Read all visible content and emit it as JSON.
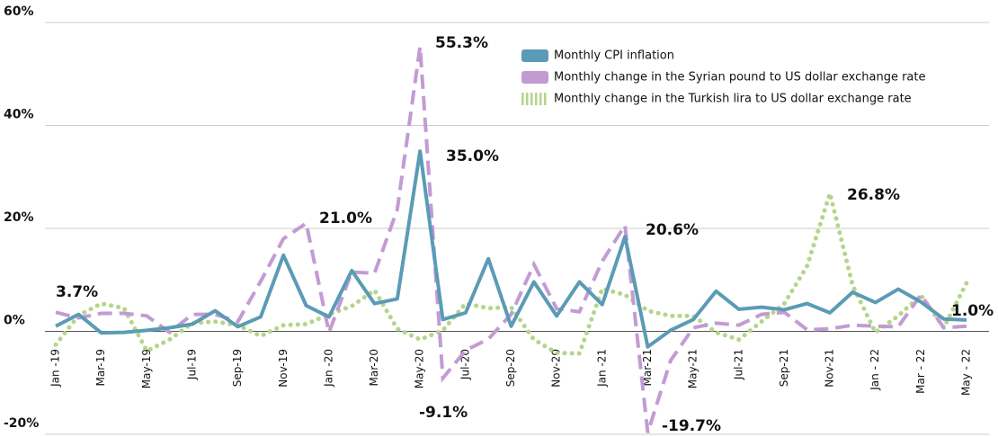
{
  "chart_data": {
    "type": "line",
    "categories": [
      "Jan -19",
      null,
      "Mar-19",
      null,
      "May-19",
      null,
      "Jul-19",
      null,
      "Sep-19",
      null,
      "Nov-19",
      null,
      "Jan -20",
      null,
      "Mar-20",
      null,
      "May-20",
      null,
      "Jul-20",
      null,
      "Sep-20",
      null,
      "Nov-20",
      null,
      "Jan -21",
      null,
      "Mar-21",
      null,
      "May-21",
      null,
      "Jul-21",
      null,
      "Sep-21",
      null,
      "Nov-21",
      null,
      "Jan - 22",
      null,
      "Mar - 22",
      null,
      "May - 22"
    ],
    "series": [
      {
        "name": "Monthly CPI inflation",
        "color": "#5b9bb5",
        "values": [
          1,
          3.3,
          -0.3,
          -0.2,
          0.2,
          0.7,
          1.4,
          4,
          0.9,
          2.8,
          14.8,
          5,
          2.8,
          11.8,
          5.4,
          6.3,
          35.0,
          2.3,
          3.6,
          14.1,
          1,
          9.6,
          3,
          9.6,
          5.2,
          18.4,
          -3,
          0.2,
          2.3,
          7.8,
          4.3,
          4.7,
          4.2,
          5.4,
          3.6,
          7.6,
          5.6,
          8.2,
          5.7,
          2.4,
          2.2
        ]
      },
      {
        "name": "Monthly change in the Syrian pound to US dollar exchange rate",
        "color": "#c39bd3",
        "values": [
          3.7,
          2.6,
          3.5,
          3.5,
          3,
          -0.2,
          3.3,
          3.3,
          1.9,
          9.7,
          18,
          21.0,
          -0.2,
          11.5,
          11.3,
          23.7,
          55.3,
          -9.1,
          -3.7,
          -1.5,
          3.3,
          13,
          4.4,
          3.8,
          13.6,
          20.6,
          -19.7,
          -5.7,
          0.7,
          1.6,
          1.2,
          3.3,
          3.7,
          0.3,
          0.5,
          1.2,
          1,
          0.9,
          7.1,
          0.7,
          1.0
        ]
      },
      {
        "name": "Monthly change in the Turkish lira to US dollar exchange rate",
        "color": "#b5d58a",
        "values": [
          -2.6,
          3.1,
          5.4,
          4.5,
          -3.8,
          -1.6,
          1.6,
          1.9,
          1.2,
          -0.9,
          1.2,
          1.4,
          3.3,
          4.9,
          8,
          0.5,
          -1.6,
          0.2,
          5.4,
          4.5,
          4.7,
          -1.6,
          -4.2,
          -4.3,
          8.3,
          7.1,
          4,
          3,
          3,
          -0.2,
          -1.6,
          1.9,
          5.4,
          12.7,
          26.8,
          8.9,
          -0.2,
          3,
          7,
          0.7,
          9.4
        ]
      }
    ],
    "annotations": [
      "3.7%",
      "21.0%",
      "55.3%",
      "35.0%",
      "-9.1%",
      "20.6%",
      "-19.7%",
      "26.8%",
      "1.0%"
    ],
    "ylim": [
      -20,
      60
    ],
    "yticks": [
      {
        "value": -20,
        "label": "-20%"
      },
      {
        "value": 0,
        "label": "0%"
      },
      {
        "value": 20,
        "label": "20%"
      },
      {
        "value": 40,
        "label": "40%"
      },
      {
        "value": 60,
        "label": "60%"
      }
    ],
    "grid": true
  }
}
